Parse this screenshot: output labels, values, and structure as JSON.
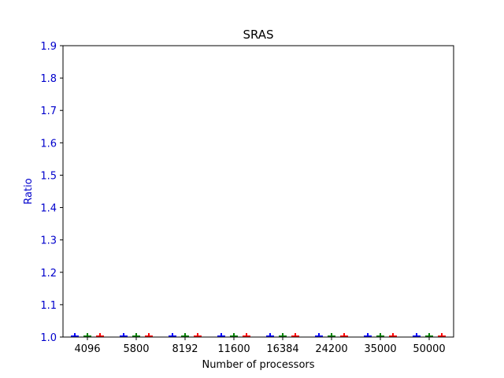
{
  "chart_data": {
    "type": "bar",
    "title": "SRAS",
    "xlabel": "Number of processors",
    "ylabel": "Ratio",
    "categories": [
      "4096",
      "5800",
      "8192",
      "11600",
      "16384",
      "24200",
      "35000",
      "50000"
    ],
    "ylim": [
      1.0,
      1.9
    ],
    "yticks": [
      "1.0",
      "1.1",
      "1.2",
      "1.3",
      "1.4",
      "1.5",
      "1.6",
      "1.7",
      "1.8",
      "1.9"
    ],
    "grid": false,
    "legend": "none",
    "series": [
      {
        "color": "#0000ff",
        "values": [
          1.0,
          1.0,
          1.0,
          1.0,
          1.0,
          1.0,
          1.0,
          1.0
        ]
      },
      {
        "color": "#008000",
        "values": [
          1.0,
          1.0,
          1.0,
          1.0,
          1.0,
          1.0,
          1.0,
          1.0
        ]
      },
      {
        "color": "#ff0000",
        "values": [
          1.0,
          1.0,
          1.0,
          1.0,
          1.0,
          1.0,
          1.0,
          1.0
        ]
      }
    ],
    "axis_color": "#0000cc"
  }
}
